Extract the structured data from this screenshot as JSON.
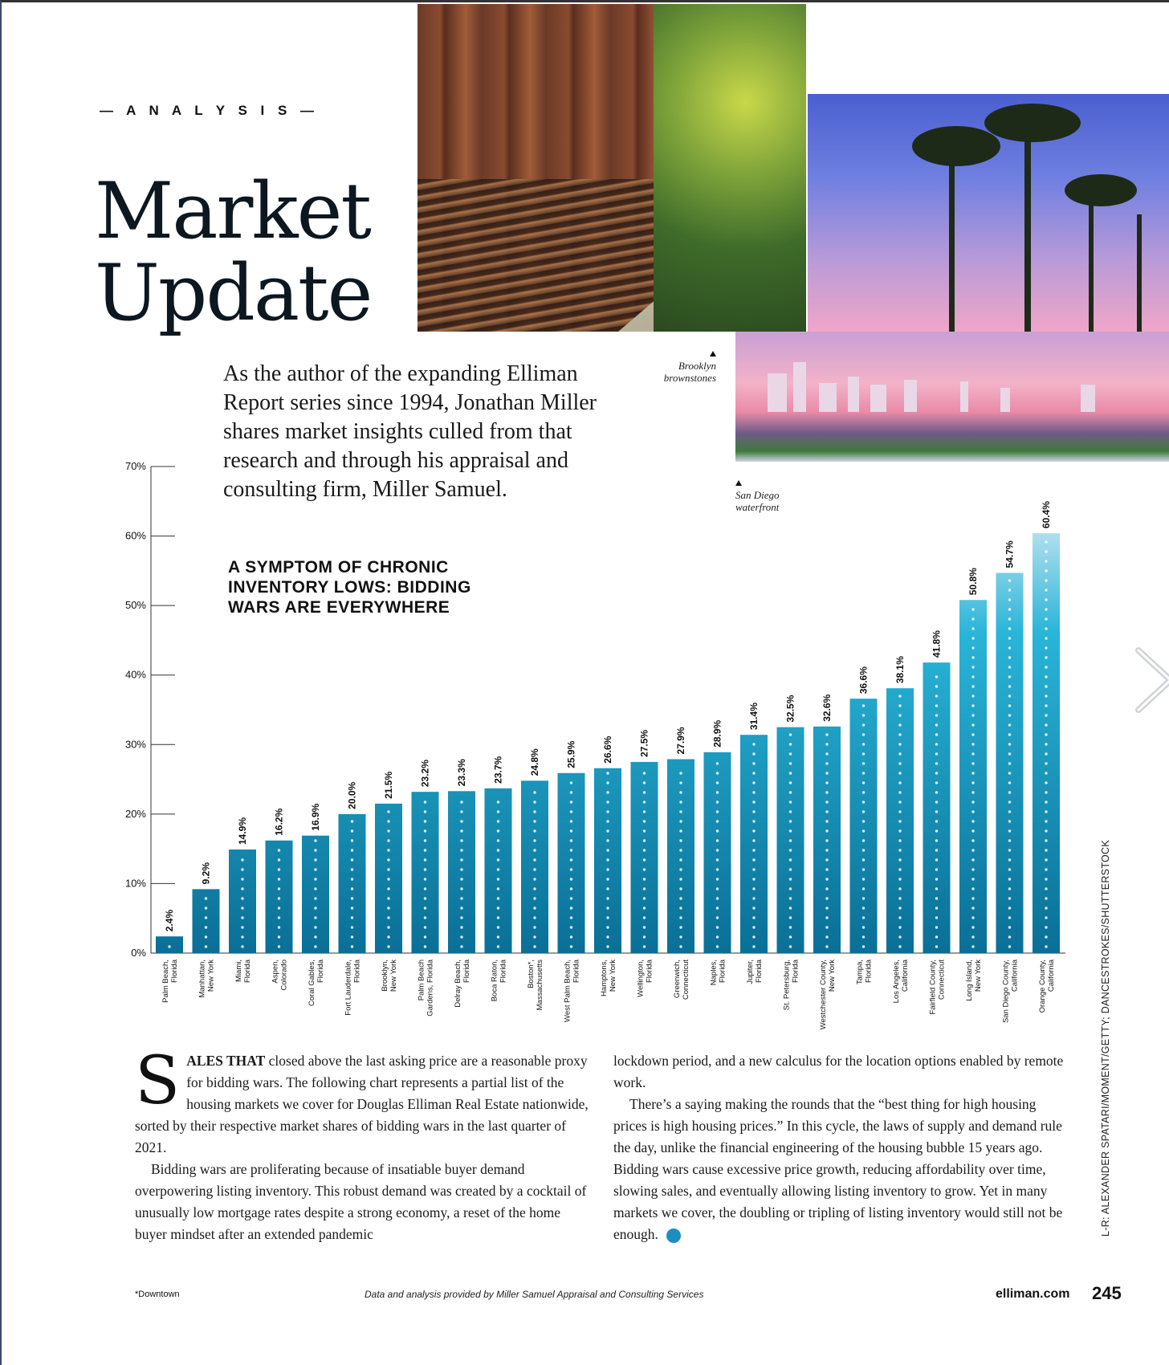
{
  "section": {
    "kicker": "— A N A L Y S I S —"
  },
  "headline": {
    "line1": "Market",
    "line2": "Update"
  },
  "intro": "As the author of the expanding Elliman Report series since 1994, Jonathan Miller shares market insights culled from that research and through his appraisal and consulting firm, Miller Samuel.",
  "photos": {
    "caption_brooklyn_1": "Brooklyn",
    "caption_brooklyn_2": "brownstones",
    "caption_sandiego_1": "San Diego",
    "caption_sandiego_2": "waterfront"
  },
  "chart_heading": "A SYMPTOM OF CHRONIC INVENTORY LOWS: BIDDING WARS ARE EVERYWHERE",
  "chart_data": {
    "type": "bar",
    "title": "A SYMPTOM OF CHRONIC INVENTORY LOWS: BIDDING WARS ARE EVERYWHERE",
    "xlabel": "",
    "ylabel": "",
    "ylim": [
      0,
      70
    ],
    "yticks": [
      "0%",
      "10%",
      "20%",
      "30%",
      "40%",
      "50%",
      "60%",
      "70%"
    ],
    "grid": false,
    "categories": [
      [
        "Palm Beach,",
        "Florida"
      ],
      [
        "Manhattan,",
        "New York"
      ],
      [
        "Miami,",
        "Florida"
      ],
      [
        "Aspen,",
        "Colorado"
      ],
      [
        "Coral Gables,",
        "Florida"
      ],
      [
        "Fort Lauderdale,",
        "Florida"
      ],
      [
        "Brooklyn,",
        "New York"
      ],
      [
        "Palm Beach",
        "Gardens, Florida"
      ],
      [
        "Delray Beach,",
        "Florida"
      ],
      [
        "Boca Raton,",
        "Florida"
      ],
      [
        "Boston*,",
        "Massachusetts"
      ],
      [
        "West Palm Beach,",
        "Florida"
      ],
      [
        "Hamptons,",
        "New York"
      ],
      [
        "Wellington,",
        "Florida"
      ],
      [
        "Greenwich,",
        "Connecticut"
      ],
      [
        "Naples,",
        "Florida"
      ],
      [
        "Jupiter,",
        "Florida"
      ],
      [
        "St. Petersburg,",
        "Florida"
      ],
      [
        "Westchester County,",
        "New York"
      ],
      [
        "Tampa,",
        "Florida"
      ],
      [
        "Los Angeles,",
        "California"
      ],
      [
        "Fairfield County,",
        "Connecticut"
      ],
      [
        "Long Island,",
        "New York"
      ],
      [
        "San Diego County,",
        "California"
      ],
      [
        "Orange County,",
        "California"
      ]
    ],
    "values": [
      2.4,
      9.2,
      14.9,
      16.2,
      16.9,
      20.0,
      21.5,
      23.2,
      23.3,
      23.7,
      24.8,
      25.9,
      26.6,
      27.5,
      27.9,
      28.9,
      31.4,
      32.5,
      32.6,
      36.6,
      38.1,
      41.8,
      50.8,
      54.7,
      60.4
    ],
    "value_labels": [
      "2.4%",
      "9.2%",
      "14.9%",
      "16.2%",
      "16.9%",
      "20.0%",
      "21.5%",
      "23.2%",
      "23.3%",
      "23.7%",
      "24.8%",
      "25.9%",
      "26.6%",
      "27.5%",
      "27.9%",
      "28.9%",
      "31.4%",
      "32.5%",
      "32.6%",
      "36.6%",
      "38.1%",
      "41.8%",
      "50.8%",
      "54.7%",
      "60.4%"
    ],
    "colors": {
      "low": "#0a6f96",
      "high": "#29b5d8",
      "top": "#b9e2f0"
    }
  },
  "body": {
    "dropcap": "S",
    "leadin": "ALES THAT",
    "p1_rest": " closed above the last asking price are a reasonable proxy for bidding wars. The following chart represents a partial list of the housing markets we cover for Douglas Elliman Real Estate nationwide, sorted by their respective market shares of bidding wars in the last quarter of 2021.",
    "p2": "Bidding wars are proliferating because of insatiable buyer demand overpowering listing inventory. This robust demand was created by a cocktail of unusually low mortgage rates despite a strong economy, a reset of the home buyer mindset after an extended pandemic",
    "p3": "lockdown period, and a new calculus for the location options enabled by remote work.",
    "p4": "There’s a saying making the rounds that the “best thing for high housing prices is high housing prices.” In this cycle, the laws of supply and demand rule the day, unlike the financial engineering of the housing bubble 15 years ago. Bidding wars cause excessive price growth, reducing affordability over time, slowing sales, and eventually allowing listing inventory to grow. Yet in many markets we cover, the doubling or tripling of listing inventory would still not be enough.",
    "endmark": "E"
  },
  "footer": {
    "footnote": "*Downtown",
    "source": "Data and analysis provided by Miller Samuel Appraisal and Consulting Services",
    "site": "elliman.com",
    "page": "245"
  },
  "credit": "L-R: ALEXANDER SPATARI/MOMENT/GETTY; DANCESTROKES/SHUTTERSTOCK",
  "icons": {
    "next": "chevron-right-icon"
  }
}
